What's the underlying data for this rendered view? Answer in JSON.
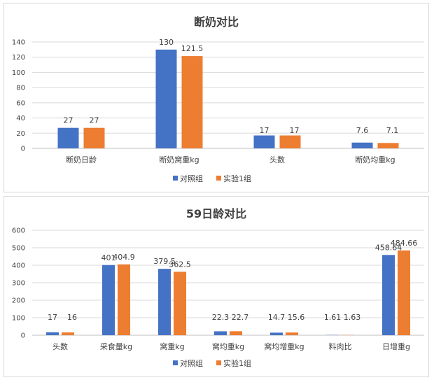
{
  "colors": {
    "series1": "#4472C4",
    "series2": "#ED7D31",
    "grid": "#d9d9d9",
    "axis": "#bfbfbf"
  },
  "chart_data": [
    {
      "type": "bar",
      "title": "断奶对比",
      "categories": [
        "断奶日龄",
        "断奶窝重kg",
        "头数",
        "断奶均重kg"
      ],
      "series": [
        {
          "name": "对照组",
          "values": [
            27,
            130,
            17,
            7.6
          ],
          "labels": [
            "27",
            "130",
            "17",
            "7.6"
          ]
        },
        {
          "name": "实验1组",
          "values": [
            27,
            121.5,
            17,
            7.1
          ],
          "labels": [
            "27",
            "121.5",
            "17",
            "7.1"
          ]
        }
      ],
      "ylim": [
        0,
        140
      ],
      "yticks": [
        0,
        20,
        40,
        60,
        80,
        100,
        120,
        140
      ],
      "grid": true,
      "legend": "bottom"
    },
    {
      "type": "bar",
      "title": "59日龄对比",
      "categories": [
        "头数",
        "采食量kg",
        "窝重kg",
        "窝均重kg",
        "窝均增重kg",
        "料肉比",
        "日增重g"
      ],
      "series": [
        {
          "name": "对照组",
          "values": [
            17,
            401,
            379.5,
            22.3,
            14.7,
            1.61,
            458.64
          ],
          "labels": [
            "17",
            "401",
            "379.5",
            "22.3",
            "14.7",
            "1.61",
            "458.64"
          ]
        },
        {
          "name": "实验1组",
          "values": [
            16,
            404.9,
            362.5,
            22.7,
            15.6,
            1.63,
            484.66
          ],
          "labels": [
            "16",
            "404.9",
            "362.5",
            "22.7",
            "15.6",
            "1.63",
            "484.66"
          ]
        }
      ],
      "ylim": [
        0,
        600
      ],
      "yticks": [
        0,
        100,
        200,
        300,
        400,
        500,
        600
      ],
      "grid": true,
      "legend": "bottom"
    }
  ]
}
